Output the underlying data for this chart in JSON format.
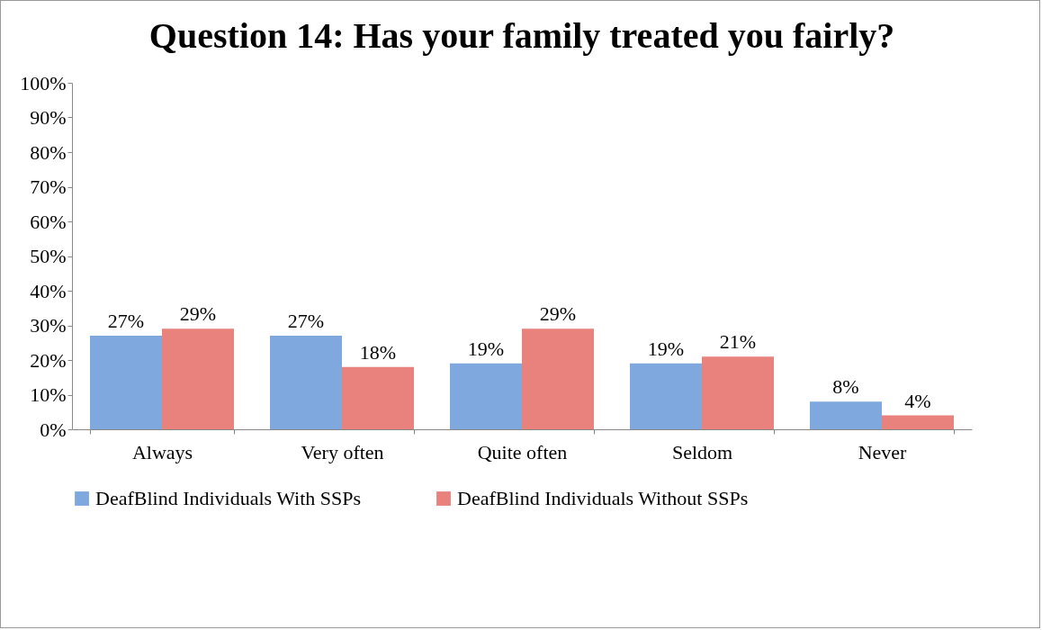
{
  "chart_data": {
    "type": "bar",
    "title": "Question 14: Has your family treated you fairly?",
    "categories": [
      "Always",
      "Very often",
      "Quite often",
      "Seldom",
      "Never"
    ],
    "series": [
      {
        "name": "DeafBlind Individuals With SSPs",
        "color": "#7fa9de",
        "values": [
          27,
          27,
          19,
          19,
          8
        ],
        "value_labels": [
          "27%",
          "27%",
          "19%",
          "19%",
          "8%"
        ]
      },
      {
        "name": "DeafBlind Individuals Without SSPs",
        "color": "#e9827c",
        "values": [
          29,
          18,
          29,
          21,
          4
        ],
        "value_labels": [
          "29%",
          "18%",
          "29%",
          "21%",
          "4%"
        ]
      }
    ],
    "ylim": [
      0,
      100
    ],
    "yticks": [
      {
        "value": 0,
        "label": "0%"
      },
      {
        "value": 10,
        "label": "10%"
      },
      {
        "value": 20,
        "label": "20%"
      },
      {
        "value": 30,
        "label": "30%"
      },
      {
        "value": 40,
        "label": "40%"
      },
      {
        "value": 50,
        "label": "50%"
      },
      {
        "value": 60,
        "label": "60%"
      },
      {
        "value": 70,
        "label": "70%"
      },
      {
        "value": 80,
        "label": "80%"
      },
      {
        "value": 90,
        "label": "90%"
      },
      {
        "value": 100,
        "label": "100%"
      }
    ],
    "grid": false,
    "legend": "bottom"
  }
}
